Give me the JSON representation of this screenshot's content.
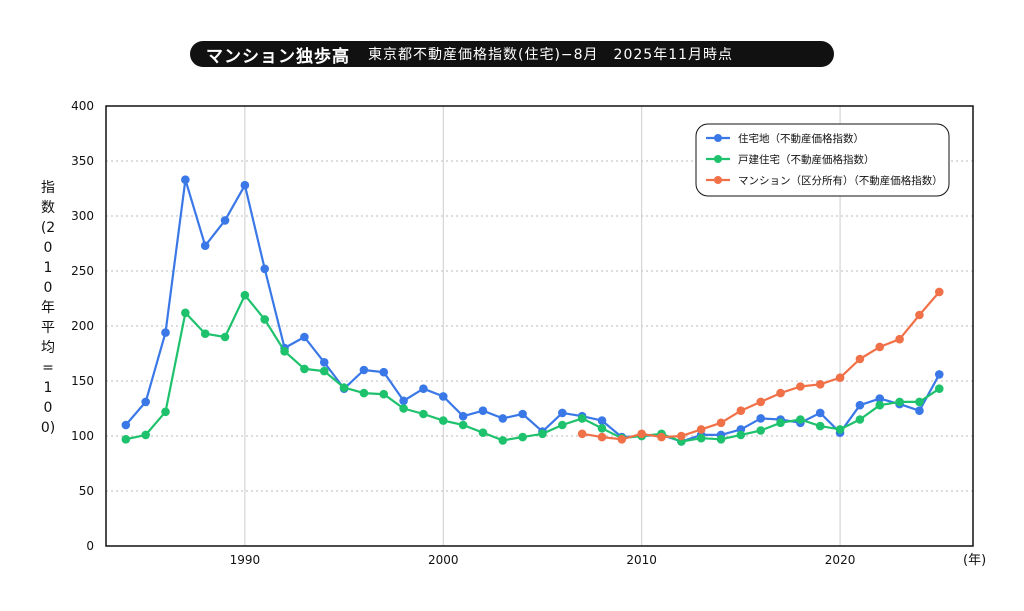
{
  "header": {
    "title": "マンション独歩高",
    "subtitle": "東京都不動産価格指数(住宅)−8月　2025年11月時点"
  },
  "chart_data": {
    "type": "line",
    "ylabel": "指数(2010年 平均=100)",
    "xunit": "(年)",
    "xlim": [
      1983,
      2026.7
    ],
    "ylim": [
      0,
      400
    ],
    "x_ticks": [
      1990,
      2000,
      2010,
      2020
    ],
    "y_ticks": [
      0,
      50,
      100,
      150,
      200,
      250,
      300,
      350,
      400
    ],
    "grid": true,
    "legend_position": "top-right",
    "series": [
      {
        "name": "住宅地（不動産価格指数）",
        "color": "#3a78e8",
        "x": [
          1984,
          1985,
          1986,
          1987,
          1988,
          1989,
          1990,
          1991,
          1992,
          1993,
          1994,
          1995,
          1996,
          1997,
          1998,
          1999,
          2000,
          2001,
          2002,
          2003,
          2004,
          2005,
          2006,
          2007,
          2008,
          2009,
          2010,
          2011,
          2012,
          2013,
          2014,
          2015,
          2016,
          2017,
          2018,
          2019,
          2020,
          2021,
          2022,
          2023,
          2024,
          2025
        ],
        "values": [
          110,
          131,
          194,
          333,
          273,
          296,
          328,
          252,
          180,
          190,
          167,
          143,
          160,
          158,
          132,
          143,
          136,
          118,
          123,
          116,
          120,
          104,
          121,
          118,
          114,
          99,
          100,
          101,
          95,
          101,
          101,
          106,
          116,
          115,
          112,
          121,
          103,
          128,
          134,
          129,
          123,
          156
        ]
      },
      {
        "name": "戸建住宅（不動産価格指数）",
        "color": "#1ec26c",
        "x": [
          1984,
          1985,
          1986,
          1987,
          1988,
          1989,
          1990,
          1991,
          1992,
          1993,
          1994,
          1995,
          1996,
          1997,
          1998,
          1999,
          2000,
          2001,
          2002,
          2003,
          2004,
          2005,
          2006,
          2007,
          2008,
          2009,
          2010,
          2011,
          2012,
          2013,
          2014,
          2015,
          2016,
          2017,
          2018,
          2019,
          2020,
          2021,
          2022,
          2023,
          2024,
          2025
        ],
        "values": [
          97,
          101,
          122,
          212,
          193,
          190,
          228,
          206,
          177,
          161,
          159,
          144,
          139,
          138,
          125,
          120,
          114,
          110,
          103,
          96,
          99,
          102,
          110,
          116,
          107,
          98,
          100,
          102,
          95,
          98,
          97,
          101,
          105,
          112,
          115,
          109,
          106,
          115,
          128,
          131,
          131,
          143
        ]
      },
      {
        "name": "マンション（区分所有）（不動産価格指数）",
        "color": "#f07048",
        "x": [
          2007,
          2008,
          2009,
          2010,
          2011,
          2012,
          2013,
          2014,
          2015,
          2016,
          2017,
          2018,
          2019,
          2020,
          2021,
          2022,
          2023,
          2024,
          2025
        ],
        "values": [
          102,
          99,
          97,
          102,
          99,
          100,
          106,
          112,
          123,
          131,
          139,
          145,
          147,
          153,
          170,
          181,
          188,
          210,
          231
        ]
      }
    ]
  }
}
